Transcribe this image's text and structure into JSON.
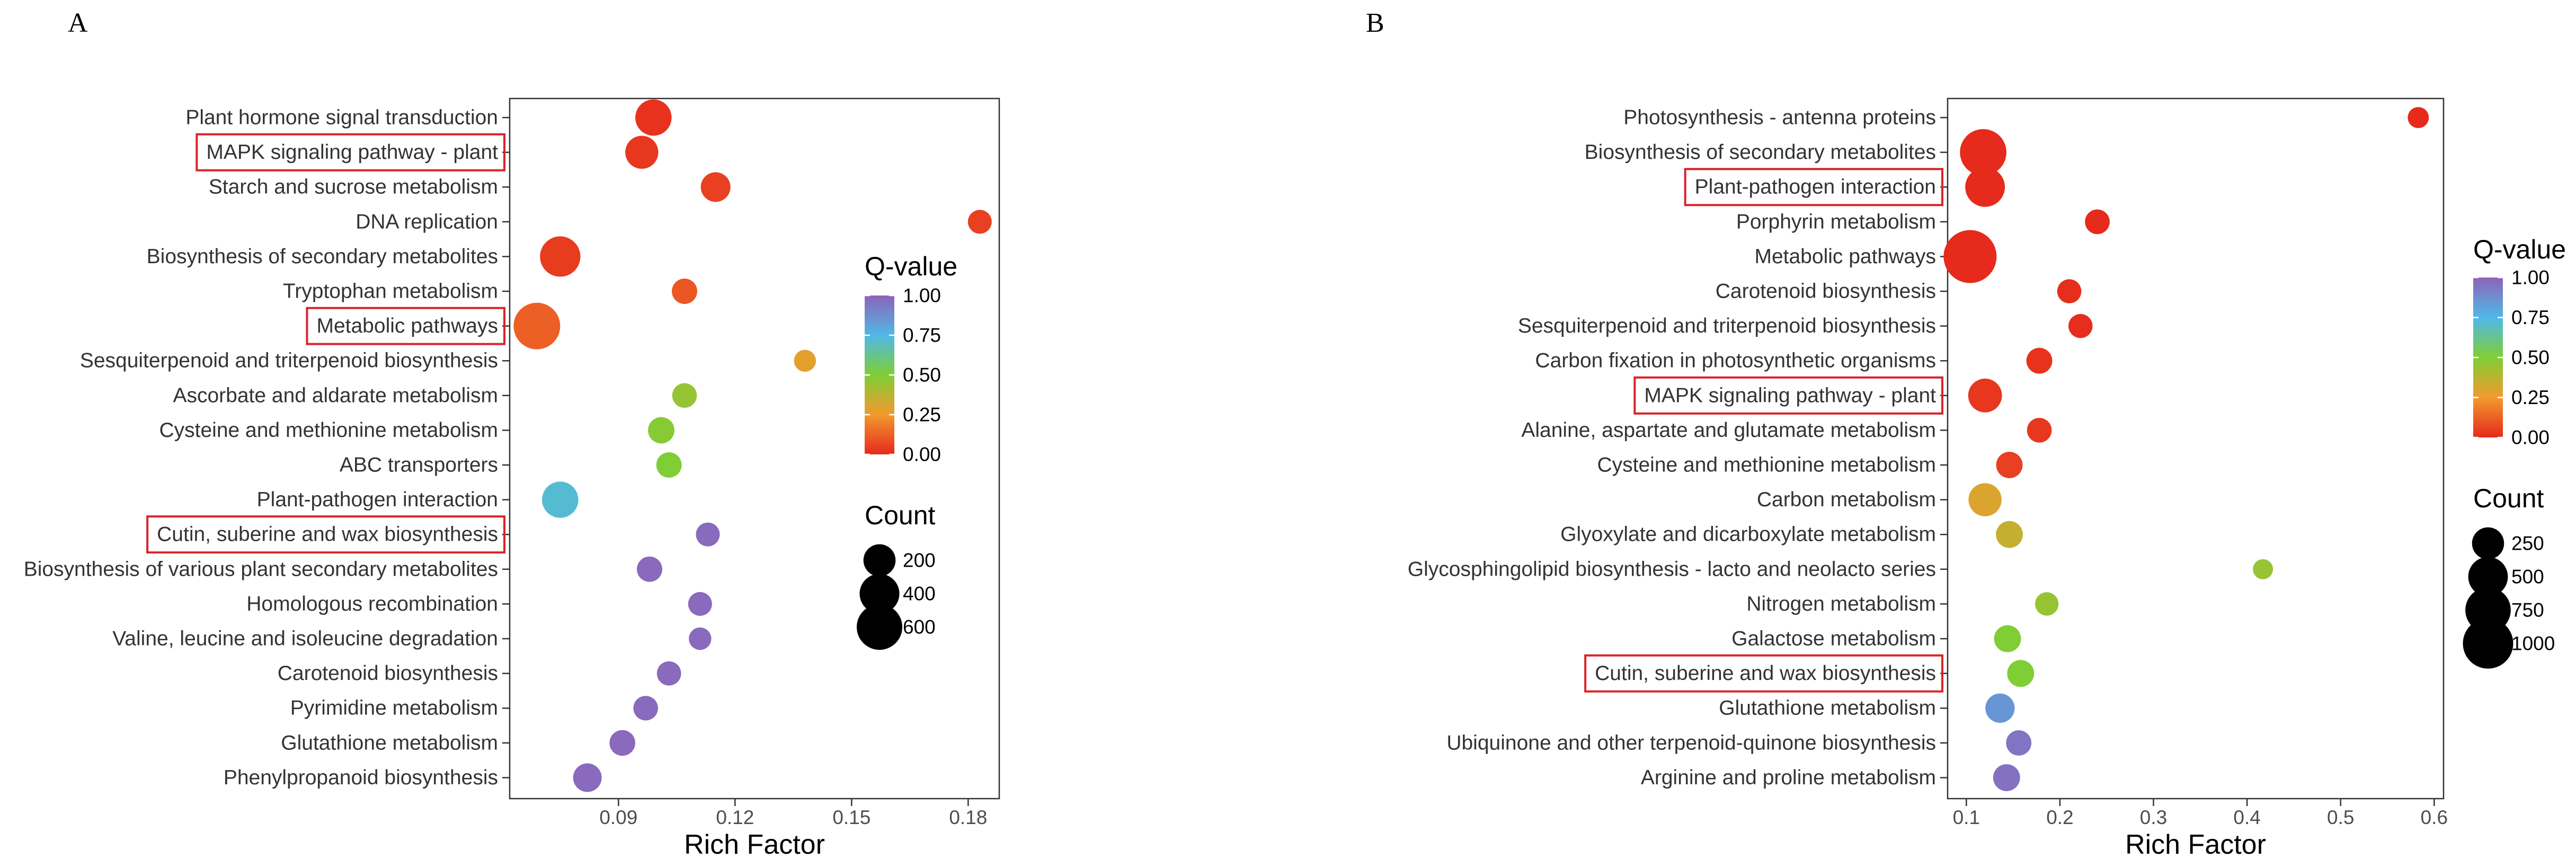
{
  "chart_data": [
    {
      "panel": "A",
      "type": "scatter",
      "xlabel": "Rich Factor",
      "xlim": [
        0.062,
        0.188
      ],
      "xticks": [
        0.09,
        0.12,
        0.15,
        0.18
      ],
      "xtick_labels": [
        "0.09",
        "0.12",
        "0.15",
        "0.18"
      ],
      "grid": false,
      "legend_position": "right",
      "color_legend": {
        "title": "Q-value",
        "ticks": [
          1.0,
          0.75,
          0.5,
          0.25,
          0.0
        ],
        "tick_labels": [
          "1.00",
          "0.75",
          "0.50",
          "0.25",
          "0.00"
        ],
        "colors": [
          "#8e63b8",
          "#4fb8e8",
          "#7fce35",
          "#f29a2e",
          "#e62a1c"
        ]
      },
      "size_legend": {
        "title": "Count",
        "values": [
          200,
          400,
          600
        ],
        "labels": [
          "200",
          "400",
          "600"
        ]
      },
      "highlighted": [
        "MAPK signaling pathway - plant",
        "Metabolic pathways",
        "Cutin, suberine and wax biosynthesis"
      ],
      "points": [
        {
          "term": "Plant hormone signal transduction",
          "rich_factor": 0.099,
          "count": 300,
          "q_value": 0.02
        },
        {
          "term": "MAPK signaling pathway - plant",
          "rich_factor": 0.096,
          "count": 220,
          "q_value": 0.03
        },
        {
          "term": "Starch and sucrose metabolism",
          "rich_factor": 0.115,
          "count": 150,
          "q_value": 0.05
        },
        {
          "term": "DNA replication",
          "rich_factor": 0.183,
          "count": 60,
          "q_value": 0.05
        },
        {
          "term": "Biosynthesis of secondary metabolites",
          "rich_factor": 0.075,
          "count": 420,
          "q_value": 0.04
        },
        {
          "term": "Tryptophan metabolism",
          "rich_factor": 0.107,
          "count": 80,
          "q_value": 0.1
        },
        {
          "term": "Metabolic pathways",
          "rich_factor": 0.069,
          "count": 640,
          "q_value": 0.12
        },
        {
          "term": "Sesquiterpenoid and triterpenoid biosynthesis",
          "rich_factor": 0.138,
          "count": 40,
          "q_value": 0.28
        },
        {
          "term": "Ascorbate and aldarate metabolism",
          "rich_factor": 0.107,
          "count": 70,
          "q_value": 0.45
        },
        {
          "term": "Cysteine and methionine metabolism",
          "rich_factor": 0.101,
          "count": 95,
          "q_value": 0.48
        },
        {
          "term": "ABC transporters",
          "rich_factor": 0.103,
          "count": 80,
          "q_value": 0.5
        },
        {
          "term": "Plant-pathogen interaction",
          "rich_factor": 0.075,
          "count": 300,
          "q_value": 0.72
        },
        {
          "term": "Cutin, suberine and wax biosynthesis",
          "rich_factor": 0.113,
          "count": 60,
          "q_value": 0.98
        },
        {
          "term": "Biosynthesis of various plant secondary metabolites",
          "rich_factor": 0.098,
          "count": 80,
          "q_value": 0.98
        },
        {
          "term": "Homologous recombination",
          "rich_factor": 0.111,
          "count": 60,
          "q_value": 0.98
        },
        {
          "term": "Valine, leucine and isoleucine degradation",
          "rich_factor": 0.111,
          "count": 45,
          "q_value": 0.98
        },
        {
          "term": "Carotenoid biosynthesis",
          "rich_factor": 0.103,
          "count": 65,
          "q_value": 0.98
        },
        {
          "term": "Pyrimidine metabolism",
          "rich_factor": 0.097,
          "count": 70,
          "q_value": 0.98
        },
        {
          "term": "Glutathione metabolism",
          "rich_factor": 0.091,
          "count": 85,
          "q_value": 0.98
        },
        {
          "term": "Phenylpropanoid biosynthesis",
          "rich_factor": 0.082,
          "count": 130,
          "q_value": 0.98
        }
      ]
    },
    {
      "panel": "B",
      "type": "scatter",
      "xlabel": "Rich Factor",
      "xlim": [
        0.08,
        0.61
      ],
      "xticks": [
        0.1,
        0.2,
        0.3,
        0.4,
        0.5,
        0.6
      ],
      "xtick_labels": [
        "0.1",
        "0.2",
        "0.3",
        "0.4",
        "0.5",
        "0.6"
      ],
      "grid": false,
      "legend_position": "right",
      "color_legend": {
        "title": "Q-value",
        "ticks": [
          1.0,
          0.75,
          0.5,
          0.25,
          0.0
        ],
        "tick_labels": [
          "1.00",
          "0.75",
          "0.50",
          "0.25",
          "0.00"
        ],
        "colors": [
          "#8e63b8",
          "#4fb8e8",
          "#7fce35",
          "#f29a2e",
          "#e62a1c"
        ]
      },
      "size_legend": {
        "title": "Count",
        "values": [
          250,
          500,
          750,
          1000
        ],
        "labels": [
          "250",
          "500",
          "750",
          "1000"
        ]
      },
      "highlighted": [
        "Plant-pathogen interaction",
        "MAPK signaling pathway - plant",
        "Cutin, suberine and wax biosynthesis"
      ],
      "points": [
        {
          "term": "Photosynthesis - antenna proteins",
          "rich_factor": 0.583,
          "count": 40,
          "q_value": 0.0
        },
        {
          "term": "Biosynthesis of secondary metabolites",
          "rich_factor": 0.118,
          "count": 800,
          "q_value": 0.0
        },
        {
          "term": "Plant-pathogen interaction",
          "rich_factor": 0.12,
          "count": 500,
          "q_value": 0.0
        },
        {
          "term": "Porphyrin metabolism",
          "rich_factor": 0.24,
          "count": 90,
          "q_value": 0.0
        },
        {
          "term": "Metabolic pathways",
          "rich_factor": 0.104,
          "count": 1150,
          "q_value": 0.0
        },
        {
          "term": "Carotenoid biosynthesis",
          "rich_factor": 0.21,
          "count": 80,
          "q_value": 0.01
        },
        {
          "term": "Sesquiterpenoid and triterpenoid biosynthesis",
          "rich_factor": 0.222,
          "count": 80,
          "q_value": 0.01
        },
        {
          "term": "Carbon fixation in photosynthetic organisms",
          "rich_factor": 0.178,
          "count": 110,
          "q_value": 0.02
        },
        {
          "term": "MAPK signaling pathway - plant",
          "rich_factor": 0.12,
          "count": 300,
          "q_value": 0.03
        },
        {
          "term": "Alanine, aspartate and glutamate metabolism",
          "rich_factor": 0.178,
          "count": 90,
          "q_value": 0.03
        },
        {
          "term": "Cysteine and methionine metabolism",
          "rich_factor": 0.146,
          "count": 120,
          "q_value": 0.05
        },
        {
          "term": "Carbon metabolism",
          "rich_factor": 0.12,
          "count": 280,
          "q_value": 0.3
        },
        {
          "term": "Glyoxylate and dicarboxylate metabolism",
          "rich_factor": 0.146,
          "count": 130,
          "q_value": 0.35
        },
        {
          "term": "Glycosphingolipid biosynthesis - lacto and neolacto series",
          "rich_factor": 0.417,
          "count": 30,
          "q_value": 0.45
        },
        {
          "term": "Nitrogen metabolism",
          "rich_factor": 0.186,
          "count": 70,
          "q_value": 0.45
        },
        {
          "term": "Galactose metabolism",
          "rich_factor": 0.144,
          "count": 130,
          "q_value": 0.5
        },
        {
          "term": "Cutin, suberine and wax biosynthesis",
          "rich_factor": 0.158,
          "count": 130,
          "q_value": 0.5
        },
        {
          "term": "Glutathione metabolism",
          "rich_factor": 0.136,
          "count": 180,
          "q_value": 0.85
        },
        {
          "term": "Ubiquinone and other terpenoid-quinone biosynthesis",
          "rich_factor": 0.156,
          "count": 100,
          "q_value": 0.95
        },
        {
          "term": "Arginine and proline metabolism",
          "rich_factor": 0.143,
          "count": 130,
          "q_value": 0.96
        }
      ]
    }
  ]
}
